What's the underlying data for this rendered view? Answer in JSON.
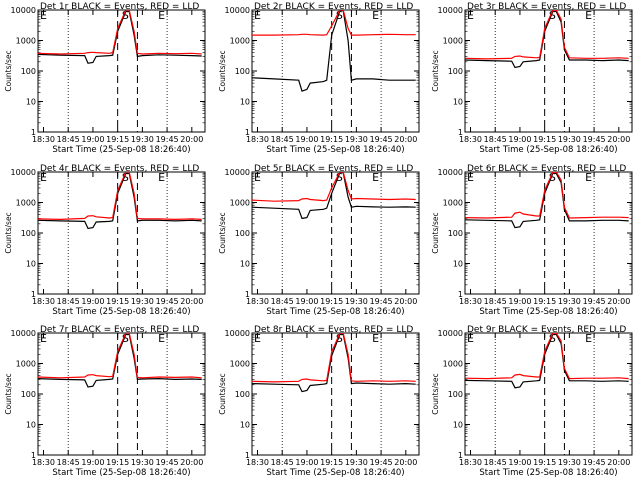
{
  "x_labels": [
    "18:30",
    "18:45",
    "19:00",
    "19:15",
    "19:30",
    "19:45",
    "20:00"
  ],
  "xlabel": "Start Time (25-Sep-08 18:26:40)",
  "ylabel": "Counts/sec",
  "y_labels": [
    "1",
    "10",
    "100",
    "1000",
    "10000"
  ],
  "colors": {
    "events": "#000000",
    "lld": "#ff0000"
  },
  "chart_data": [
    {
      "type": "line",
      "title": "Det 1r BLACK = Events, RED = LLD",
      "xlim": [
        "18:26:40",
        "20:08:00"
      ],
      "ylim": [
        1,
        10000
      ],
      "yscale": "log",
      "markers": {
        "left": "E",
        "mid": "S",
        "right": "E"
      },
      "x": [
        "18:26:40",
        "18:40",
        "18:55",
        "18:57",
        "19:00",
        "19:02",
        "19:10",
        "19:12",
        "19:15",
        "19:20",
        "19:22",
        "19:25",
        "19:27",
        "19:30",
        "19:40",
        "19:50",
        "20:00",
        "20:06"
      ],
      "series": [
        {
          "key": "events",
          "values": [
            350,
            330,
            320,
            180,
            190,
            300,
            320,
            330,
            2000,
            9000,
            9000,
            1500,
            300,
            320,
            340,
            330,
            320,
            310
          ]
        },
        {
          "key": "lld",
          "values": [
            380,
            360,
            380,
            400,
            410,
            400,
            380,
            400,
            2500,
            10000,
            10000,
            2000,
            380,
            360,
            380,
            370,
            380,
            360
          ]
        }
      ]
    },
    {
      "type": "line",
      "title": "Det 2r BLACK = Events, RED = LLD",
      "xlim": [
        "18:26:40",
        "20:08:00"
      ],
      "ylim": [
        1,
        10000
      ],
      "yscale": "log",
      "markers": {
        "left": "E",
        "mid": "S",
        "right": "E"
      },
      "x": [
        "18:26:40",
        "18:40",
        "18:55",
        "18:57",
        "19:00",
        "19:02",
        "19:10",
        "19:12",
        "19:15",
        "19:20",
        "19:22",
        "19:25",
        "19:27",
        "19:30",
        "19:40",
        "19:50",
        "20:00",
        "20:06"
      ],
      "series": [
        {
          "key": "events",
          "values": [
            60,
            55,
            50,
            22,
            25,
            40,
            45,
            50,
            1500,
            9500,
            9500,
            1000,
            50,
            55,
            55,
            50,
            50,
            50
          ]
        },
        {
          "key": "lld",
          "values": [
            1500,
            1500,
            1550,
            1600,
            1600,
            1550,
            1500,
            1550,
            3000,
            10000,
            10000,
            2500,
            1500,
            1500,
            1550,
            1600,
            1550,
            1550
          ]
        }
      ]
    },
    {
      "type": "line",
      "title": "Det 3r BLACK = Events, RED = LLD",
      "xlim": [
        "18:26:40",
        "20:08:00"
      ],
      "ylim": [
        1,
        10000
      ],
      "yscale": "log",
      "markers": {
        "left": "E",
        "mid": "S",
        "right": "E"
      },
      "x": [
        "18:26:40",
        "18:40",
        "18:55",
        "18:57",
        "19:00",
        "19:02",
        "19:10",
        "19:12",
        "19:15",
        "19:20",
        "19:22",
        "19:25",
        "19:27",
        "19:30",
        "19:40",
        "19:50",
        "20:00",
        "20:06"
      ],
      "series": [
        {
          "key": "events",
          "values": [
            230,
            220,
            210,
            130,
            140,
            200,
            220,
            230,
            2000,
            9000,
            9000,
            4000,
            500,
            230,
            230,
            220,
            230,
            220
          ]
        },
        {
          "key": "lld",
          "values": [
            260,
            250,
            260,
            300,
            310,
            290,
            270,
            280,
            2500,
            10000,
            10000,
            5000,
            600,
            270,
            260,
            260,
            270,
            260
          ]
        }
      ]
    },
    {
      "type": "line",
      "title": "Det 4r BLACK = Events, RED = LLD",
      "xlim": [
        "18:26:40",
        "20:08:00"
      ],
      "ylim": [
        1,
        10000
      ],
      "yscale": "log",
      "markers": {
        "left": "E",
        "mid": "S",
        "right": "E"
      },
      "x": [
        "18:26:40",
        "18:40",
        "18:55",
        "18:57",
        "19:00",
        "19:02",
        "19:10",
        "19:12",
        "19:15",
        "19:20",
        "19:22",
        "19:25",
        "19:27",
        "19:30",
        "19:40",
        "19:50",
        "20:00",
        "20:06"
      ],
      "series": [
        {
          "key": "events",
          "values": [
            260,
            250,
            240,
            140,
            150,
            230,
            240,
            250,
            2000,
            9000,
            9000,
            1500,
            250,
            260,
            260,
            250,
            260,
            250
          ]
        },
        {
          "key": "lld",
          "values": [
            290,
            280,
            300,
            360,
            370,
            340,
            310,
            320,
            2500,
            10000,
            10000,
            2000,
            300,
            290,
            290,
            280,
            290,
            280
          ]
        }
      ]
    },
    {
      "type": "line",
      "title": "Det 5r BLACK = Events, RED = LLD",
      "xlim": [
        "18:26:40",
        "20:08:00"
      ],
      "ylim": [
        1,
        10000
      ],
      "yscale": "log",
      "markers": {
        "left": "E",
        "mid": "S",
        "right": "E"
      },
      "x": [
        "18:26:40",
        "18:40",
        "18:55",
        "18:57",
        "19:00",
        "19:02",
        "19:10",
        "19:12",
        "19:15",
        "19:20",
        "19:22",
        "19:25",
        "19:27",
        "19:30",
        "19:40",
        "19:50",
        "20:00",
        "20:06"
      ],
      "series": [
        {
          "key": "events",
          "values": [
            700,
            650,
            600,
            300,
            320,
            550,
            600,
            650,
            2000,
            9500,
            9500,
            1500,
            700,
            750,
            720,
            700,
            720,
            700
          ]
        },
        {
          "key": "lld",
          "values": [
            1200,
            1100,
            1150,
            1300,
            1350,
            1250,
            1150,
            1200,
            3000,
            10000,
            10000,
            2500,
            1300,
            1350,
            1300,
            1250,
            1300,
            1250
          ]
        }
      ]
    },
    {
      "type": "line",
      "title": "Det 6r BLACK = Events, RED = LLD",
      "xlim": [
        "18:26:40",
        "20:08:00"
      ],
      "ylim": [
        1,
        10000
      ],
      "yscale": "log",
      "markers": {
        "left": "E",
        "mid": "S",
        "right": "E"
      },
      "x": [
        "18:26:40",
        "18:40",
        "18:55",
        "18:57",
        "19:00",
        "19:02",
        "19:10",
        "19:12",
        "19:15",
        "19:20",
        "19:22",
        "19:25",
        "19:27",
        "19:30",
        "19:40",
        "19:50",
        "20:00",
        "20:06"
      ],
      "series": [
        {
          "key": "events",
          "values": [
            270,
            260,
            250,
            150,
            160,
            240,
            260,
            270,
            2000,
            9000,
            9000,
            4500,
            600,
            250,
            250,
            260,
            260,
            250
          ]
        },
        {
          "key": "lld",
          "values": [
            320,
            310,
            330,
            450,
            480,
            420,
            360,
            360,
            2500,
            10000,
            10000,
            5500,
            700,
            310,
            320,
            330,
            330,
            320
          ]
        }
      ]
    },
    {
      "type": "line",
      "title": "Det 7r BLACK = Events, RED = LLD",
      "xlim": [
        "18:26:40",
        "20:08:00"
      ],
      "ylim": [
        1,
        10000
      ],
      "yscale": "log",
      "markers": {
        "left": "E",
        "mid": "S",
        "right": "E"
      },
      "x": [
        "18:26:40",
        "18:40",
        "18:55",
        "18:57",
        "19:00",
        "19:02",
        "19:10",
        "19:12",
        "19:15",
        "19:20",
        "19:22",
        "19:25",
        "19:27",
        "19:30",
        "19:40",
        "19:50",
        "20:00",
        "20:06"
      ],
      "series": [
        {
          "key": "events",
          "values": [
            320,
            300,
            290,
            170,
            180,
            280,
            300,
            310,
            2000,
            9000,
            9000,
            1500,
            300,
            310,
            320,
            300,
            310,
            300
          ]
        },
        {
          "key": "lld",
          "values": [
            360,
            340,
            360,
            420,
            430,
            400,
            370,
            380,
            2500,
            10000,
            10000,
            2000,
            350,
            340,
            360,
            350,
            360,
            340
          ]
        }
      ]
    },
    {
      "type": "line",
      "title": "Det 8r BLACK = Events, RED = LLD",
      "xlim": [
        "18:26:40",
        "20:08:00"
      ],
      "ylim": [
        1,
        10000
      ],
      "yscale": "log",
      "markers": {
        "left": "E",
        "mid": "S",
        "right": "E"
      },
      "x": [
        "18:26:40",
        "18:40",
        "18:55",
        "18:57",
        "19:00",
        "19:02",
        "19:10",
        "19:12",
        "19:15",
        "19:20",
        "19:22",
        "19:25",
        "19:27",
        "19:30",
        "19:40",
        "19:50",
        "20:00",
        "20:06"
      ],
      "series": [
        {
          "key": "events",
          "values": [
            220,
            210,
            200,
            120,
            130,
            190,
            210,
            220,
            1800,
            9000,
            9000,
            1500,
            220,
            230,
            220,
            210,
            220,
            210
          ]
        },
        {
          "key": "lld",
          "values": [
            260,
            250,
            260,
            300,
            310,
            290,
            270,
            280,
            2400,
            10000,
            10000,
            2000,
            270,
            260,
            270,
            260,
            270,
            260
          ]
        }
      ]
    },
    {
      "type": "line",
      "title": "Det 9r BLACK = Events, RED = LLD",
      "xlim": [
        "18:26:40",
        "20:08:00"
      ],
      "ylim": [
        1,
        10000
      ],
      "yscale": "log",
      "markers": {
        "left": "E",
        "mid": "S",
        "right": "E"
      },
      "x": [
        "18:26:40",
        "18:40",
        "18:55",
        "18:57",
        "19:00",
        "19:02",
        "19:10",
        "19:12",
        "19:15",
        "19:20",
        "19:22",
        "19:25",
        "19:27",
        "19:30",
        "19:40",
        "19:50",
        "20:00",
        "20:06"
      ],
      "series": [
        {
          "key": "events",
          "values": [
            280,
            270,
            260,
            160,
            170,
            250,
            270,
            280,
            2000,
            9000,
            9000,
            4500,
            600,
            270,
            270,
            260,
            270,
            260
          ]
        },
        {
          "key": "lld",
          "values": [
            330,
            320,
            340,
            420,
            440,
            400,
            360,
            360,
            2500,
            10000,
            10000,
            5500,
            700,
            320,
            330,
            330,
            340,
            320
          ]
        }
      ]
    }
  ]
}
